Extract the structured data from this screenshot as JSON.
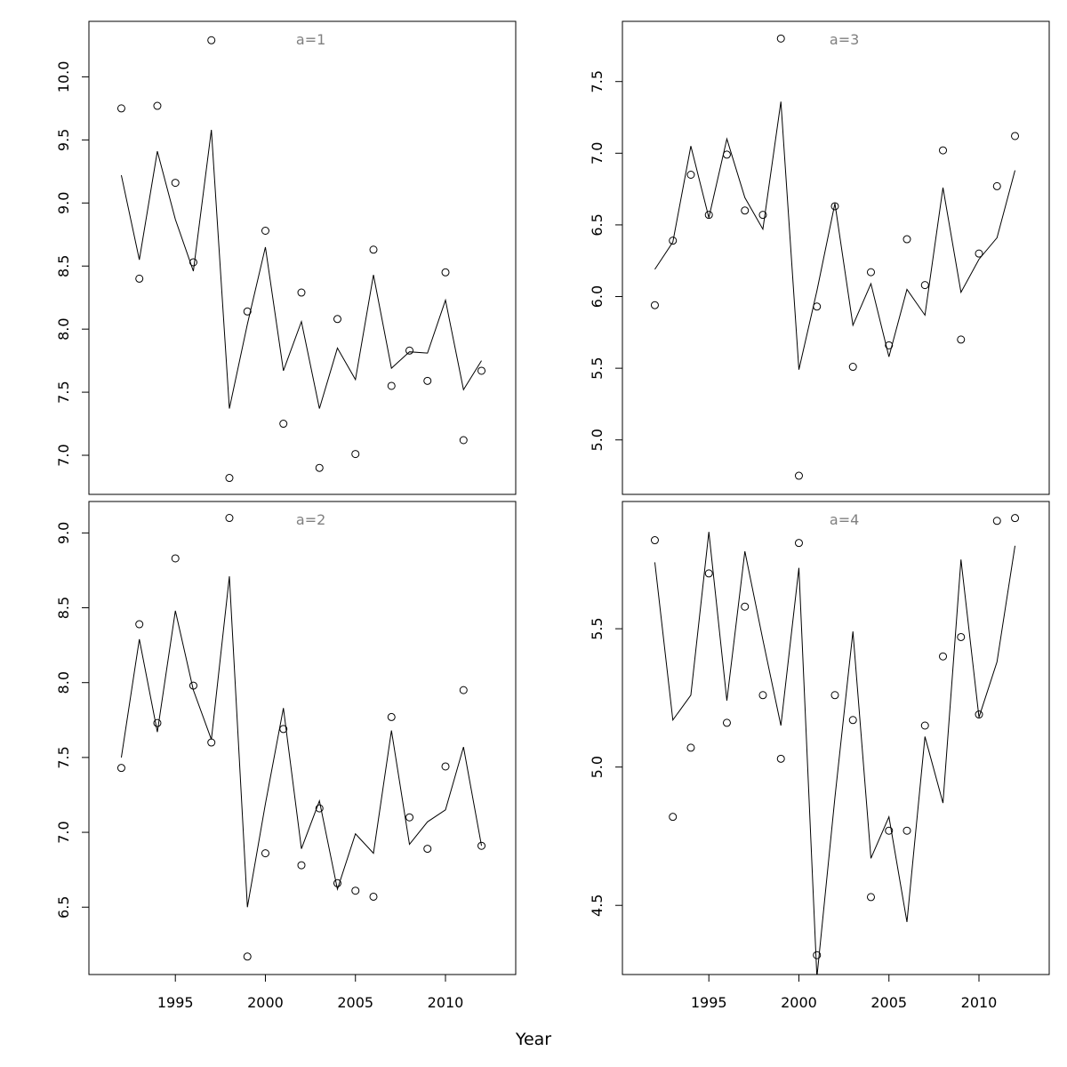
{
  "figure": {
    "xlabel": "Year"
  },
  "chart_data": [
    {
      "type": "scatter",
      "title": "a=1",
      "xlabel": "Year",
      "ylabel": "",
      "x": [
        1992,
        1993,
        1994,
        1995,
        1996,
        1997,
        1998,
        1999,
        2000,
        2001,
        2002,
        2003,
        2004,
        2005,
        2006,
        2007,
        2008,
        2009,
        2010,
        2011,
        2012
      ],
      "xlim": [
        1990.2,
        2013.9
      ],
      "ylim": [
        6.69,
        10.44
      ],
      "yticks": [
        "7.0",
        "7.5",
        "8.0",
        "8.5",
        "9.0",
        "9.5",
        "10.0"
      ],
      "xticks": [],
      "series": [
        {
          "kind": "points",
          "values": [
            9.75,
            8.4,
            9.77,
            9.16,
            8.53,
            10.29,
            6.82,
            8.14,
            8.78,
            7.25,
            8.29,
            6.9,
            8.08,
            7.01,
            8.63,
            7.55,
            7.83,
            7.59,
            8.45,
            7.12,
            7.67
          ]
        },
        {
          "kind": "line",
          "values": [
            9.22,
            8.55,
            9.41,
            8.87,
            8.46,
            9.58,
            7.37,
            8.04,
            8.65,
            7.67,
            8.06,
            7.37,
            7.85,
            7.6,
            8.43,
            7.69,
            7.82,
            7.81,
            8.23,
            7.52,
            7.75
          ]
        }
      ]
    },
    {
      "type": "scatter",
      "title": "a=3",
      "xlabel": "Year",
      "ylabel": "",
      "x": [
        1992,
        1993,
        1994,
        1995,
        1996,
        1997,
        1998,
        1999,
        2000,
        2001,
        2002,
        2003,
        2004,
        2005,
        2006,
        2007,
        2008,
        2009,
        2010,
        2011,
        2012
      ],
      "xlim": [
        1990.2,
        2013.9
      ],
      "ylim": [
        4.62,
        7.92
      ],
      "yticks": [
        "5.0",
        "5.5",
        "6.0",
        "6.5",
        "7.0",
        "7.5"
      ],
      "xticks": [],
      "series": [
        {
          "kind": "points",
          "values": [
            5.94,
            6.39,
            6.85,
            6.57,
            6.99,
            6.6,
            6.57,
            7.8,
            4.75,
            5.93,
            6.63,
            5.51,
            6.17,
            5.66,
            6.4,
            6.08,
            7.02,
            5.7,
            6.3,
            6.77,
            7.12
          ]
        },
        {
          "kind": "line",
          "values": [
            6.19,
            6.38,
            7.05,
            6.55,
            7.1,
            6.69,
            6.47,
            7.36,
            5.49,
            6.04,
            6.65,
            5.8,
            6.09,
            5.58,
            6.05,
            5.87,
            6.76,
            6.03,
            6.26,
            6.41,
            6.88
          ]
        }
      ]
    },
    {
      "type": "scatter",
      "title": "a=2",
      "xlabel": "Year",
      "ylabel": "",
      "x": [
        1992,
        1993,
        1994,
        1995,
        1996,
        1997,
        1998,
        1999,
        2000,
        2001,
        2002,
        2003,
        2004,
        2005,
        2006,
        2007,
        2008,
        2009,
        2010,
        2011,
        2012
      ],
      "xlim": [
        1990.2,
        2013.9
      ],
      "ylim": [
        6.05,
        9.21
      ],
      "yticks": [
        "6.5",
        "7.0",
        "7.5",
        "8.0",
        "8.5",
        "9.0"
      ],
      "xticks": [
        "1995",
        "2000",
        "2005",
        "2010"
      ],
      "series": [
        {
          "kind": "points",
          "values": [
            7.43,
            8.39,
            7.73,
            8.83,
            7.98,
            7.6,
            9.1,
            6.17,
            6.86,
            7.69,
            6.78,
            7.16,
            6.66,
            6.61,
            6.57,
            7.77,
            7.1,
            6.89,
            7.44,
            7.95,
            6.91
          ]
        },
        {
          "kind": "line",
          "values": [
            7.5,
            8.29,
            7.67,
            8.48,
            7.95,
            7.62,
            8.71,
            6.5,
            7.19,
            7.83,
            6.89,
            7.21,
            6.62,
            6.99,
            6.86,
            7.68,
            6.92,
            7.07,
            7.15,
            7.57,
            6.91
          ]
        }
      ]
    },
    {
      "type": "scatter",
      "title": "a=4",
      "xlabel": "Year",
      "ylabel": "",
      "x": [
        1992,
        1993,
        1994,
        1995,
        1996,
        1997,
        1998,
        1999,
        2000,
        2001,
        2002,
        2003,
        2004,
        2005,
        2006,
        2007,
        2008,
        2009,
        2010,
        2011,
        2012
      ],
      "xlim": [
        1990.2,
        2013.9
      ],
      "ylim": [
        4.25,
        5.96
      ],
      "yticks": [
        "4.5",
        "5.0",
        "5.5"
      ],
      "xticks": [
        "1995",
        "2000",
        "2005",
        "2010"
      ],
      "series": [
        {
          "kind": "points",
          "values": [
            5.82,
            4.82,
            5.07,
            5.7,
            5.16,
            5.58,
            5.26,
            5.03,
            5.81,
            4.32,
            5.26,
            5.17,
            4.53,
            4.77,
            4.77,
            5.15,
            5.4,
            5.47,
            5.19,
            5.89,
            5.9
          ]
        },
        {
          "kind": "line",
          "values": [
            5.74,
            5.17,
            5.26,
            5.85,
            5.24,
            5.78,
            5.46,
            5.15,
            5.72,
            4.24,
            4.89,
            5.49,
            4.67,
            4.82,
            4.44,
            5.11,
            4.87,
            5.75,
            5.18,
            5.38,
            5.8
          ]
        }
      ]
    }
  ]
}
